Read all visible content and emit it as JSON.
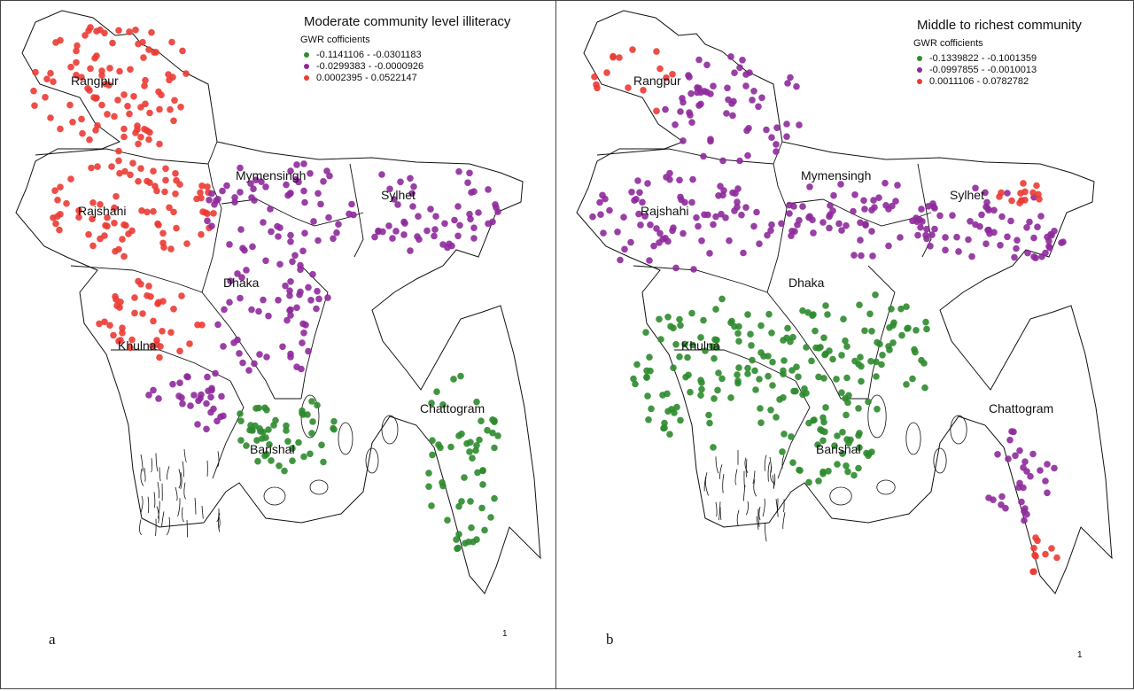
{
  "colors": {
    "class1": "#2e8b2e",
    "class2": "#8e2a9b",
    "class3": "#ec3b34"
  },
  "panels": [
    {
      "letter": "a",
      "north": "1",
      "legend": {
        "title": "Moderate community level illiteracy",
        "subtitle": "GWR cofficients",
        "items": [
          {
            "label": "-0.1141106 - -0.0301183",
            "class": "class1"
          },
          {
            "label": "-0.0299383 -  -0.0000926",
            "class": "class2"
          },
          {
            "label": "0.0002395 - 0.0522147",
            "class": "class3"
          }
        ]
      },
      "divisions": [
        "Rangpur",
        "Rajshahi",
        "Mymensingh",
        "Sylhet",
        "Dhaka",
        "Khulna",
        "Barishal",
        "Chattogram"
      ]
    },
    {
      "letter": "b",
      "north": "1",
      "legend": {
        "title": "Middle to richest community",
        "subtitle": "GWR cofficients",
        "items": [
          {
            "label": "-0.1339822 - -0.1001359",
            "class": "class1"
          },
          {
            "label": "-0.0997855 - -0.0010013",
            "class": "class2"
          },
          {
            "label": "0.0011106 - 0.0782782",
            "class": "class3"
          }
        ]
      },
      "divisions": [
        "Rangpur",
        "Rajshahi",
        "Mymensingh",
        "Sylhet",
        "Dhaka",
        "Khulna",
        "Barishal",
        "Chattogram"
      ]
    }
  ]
}
